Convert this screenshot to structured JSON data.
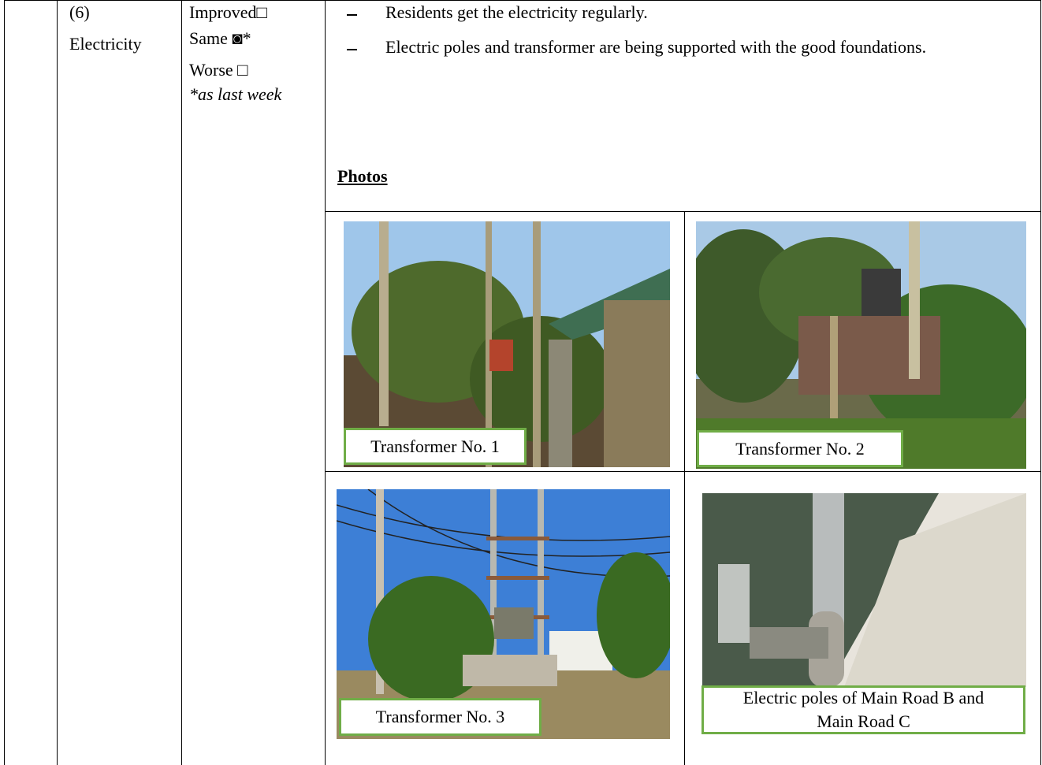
{
  "row": {
    "number": "(6)",
    "item": "Electricity",
    "status": {
      "options": [
        "Improved□",
        "Same ◙*",
        "Worse □"
      ],
      "note": "*as last week"
    },
    "remarks": [
      "Residents get the electricity regularly.",
      "Electric poles and transformer are being supported with the good foundations."
    ],
    "photos_heading": "Photos",
    "photos": [
      {
        "caption": "Transformer No. 1"
      },
      {
        "caption": "Transformer No. 2"
      },
      {
        "caption": "Transformer No. 3"
      },
      {
        "caption": "Electric poles of Main Road B and Main Road C"
      }
    ]
  }
}
